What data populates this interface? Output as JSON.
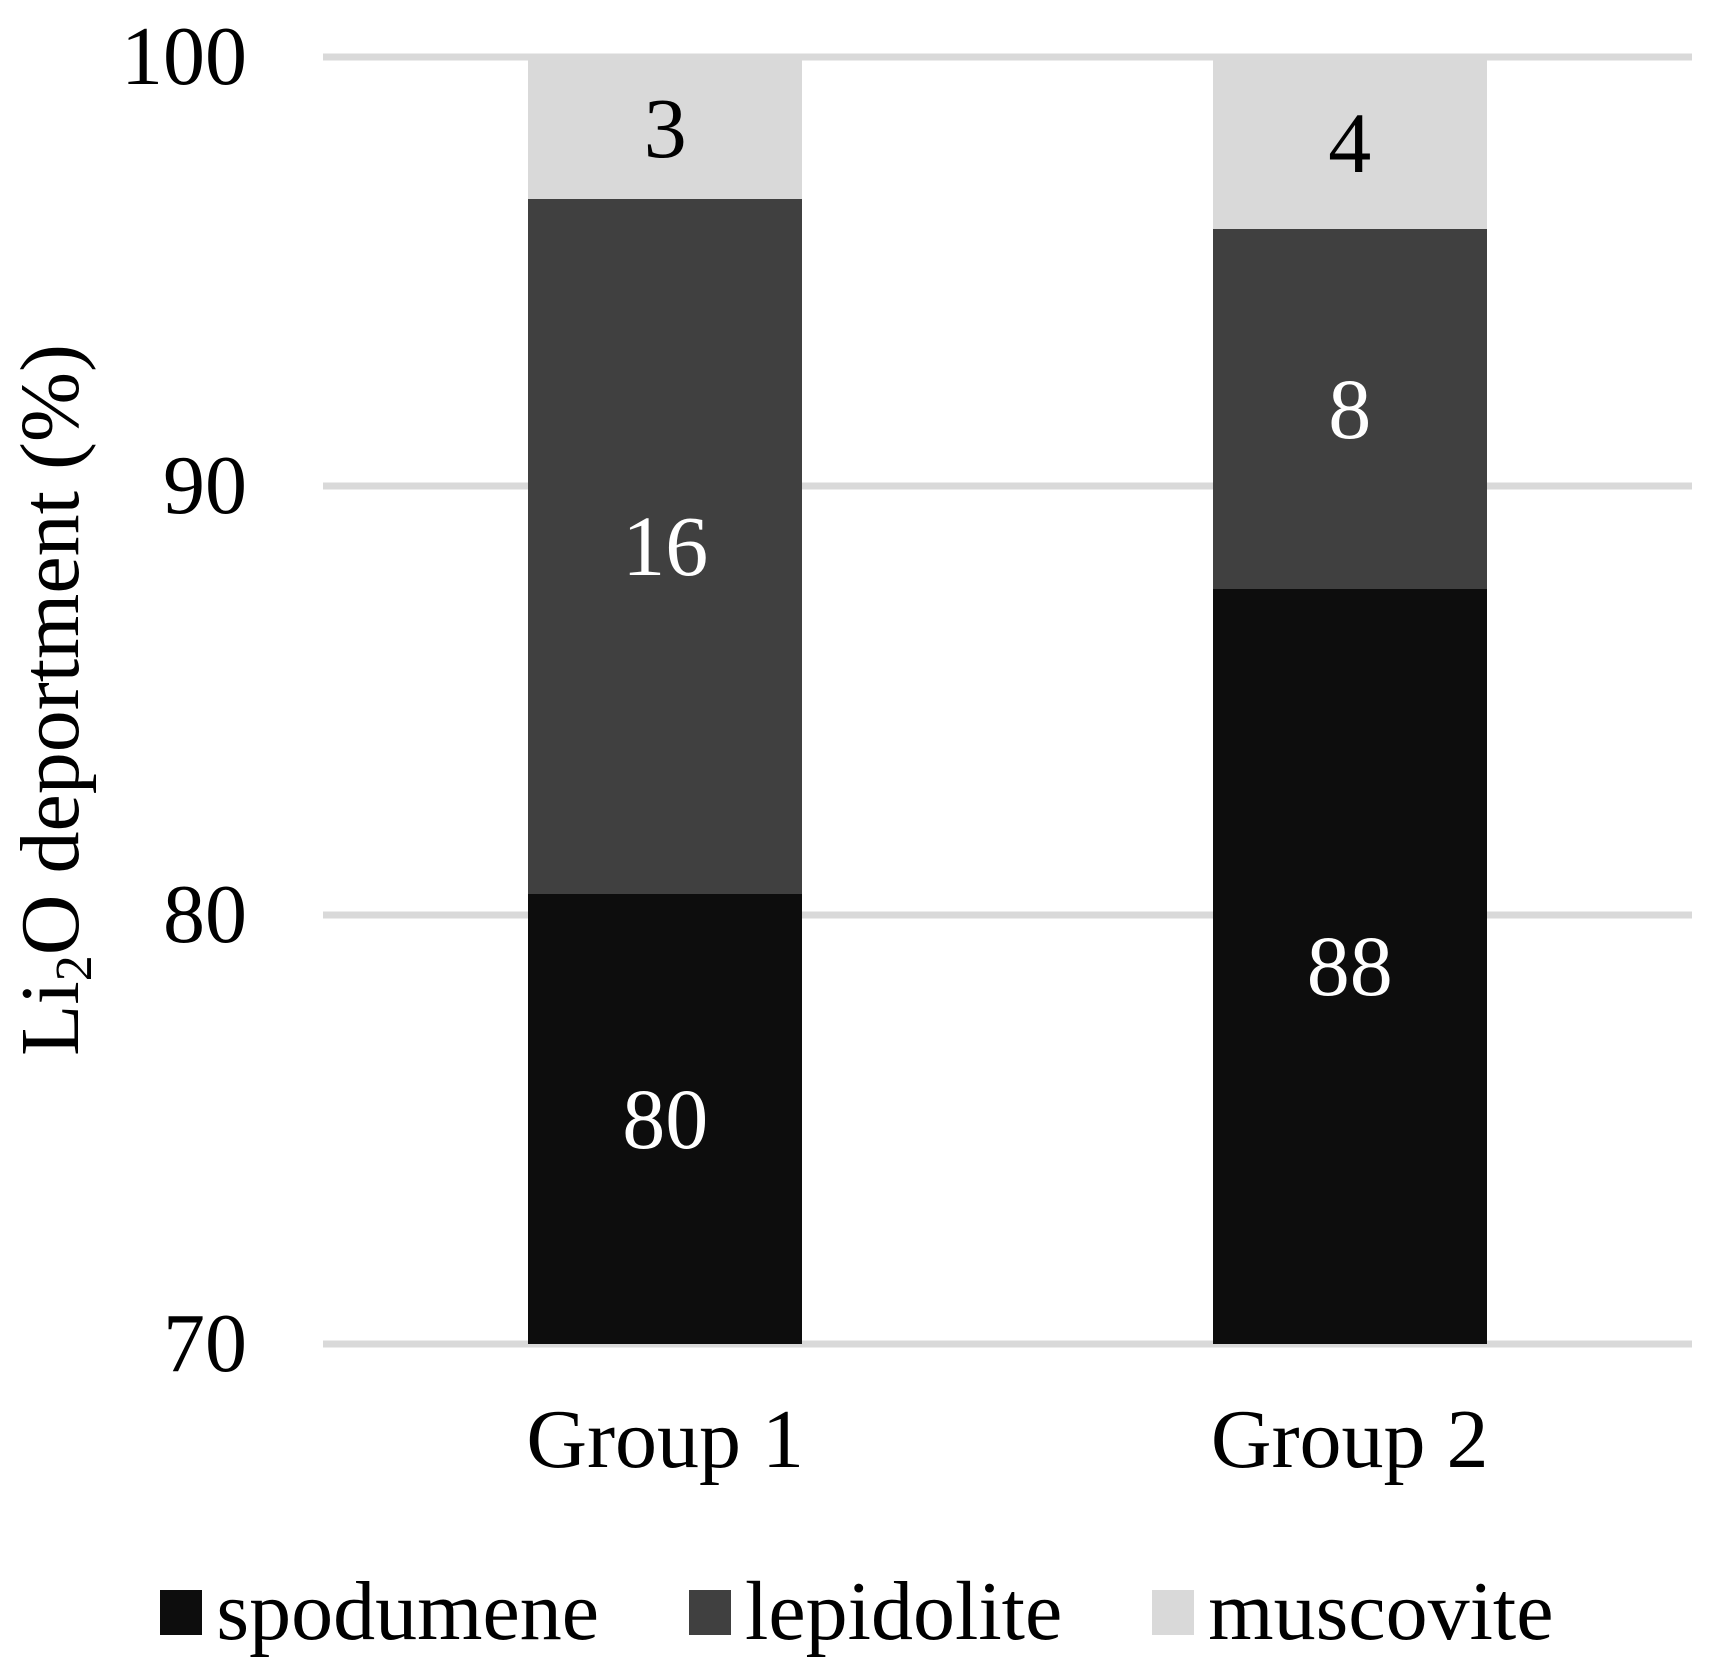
{
  "chart_data": {
    "type": "bar",
    "subtype": "stacked-column",
    "title": "",
    "ylabel": "Li2O deportment (%)",
    "ylabel_parts": {
      "prefix": "Li",
      "subscript": "2",
      "suffix": "O deportment (%)"
    },
    "categories": [
      "Group 1",
      "Group 2"
    ],
    "series": [
      {
        "name": "spodumene",
        "color": "#0d0d0d",
        "label_color": "#ffffff",
        "values": [
          80.5,
          87.6
        ],
        "data_labels": [
          "80",
          "88"
        ]
      },
      {
        "name": "lepidolite",
        "color": "#404040",
        "label_color": "#ffffff",
        "values": [
          16.2,
          8.4
        ],
        "data_labels": [
          "16",
          "8"
        ]
      },
      {
        "name": "muscovite",
        "color": "#d9d9d9",
        "label_color": "#000000",
        "values": [
          3.3,
          4.0
        ],
        "data_labels": [
          "3",
          "4"
        ]
      }
    ],
    "ylim": [
      70,
      100
    ],
    "yticks": [
      "70",
      "80",
      "90",
      "100"
    ],
    "grid": true,
    "gridline_color": "#d9d9d9",
    "legend_position": "bottom",
    "legend_items": [
      "spodumene",
      "lepidolite",
      "muscovite"
    ]
  }
}
